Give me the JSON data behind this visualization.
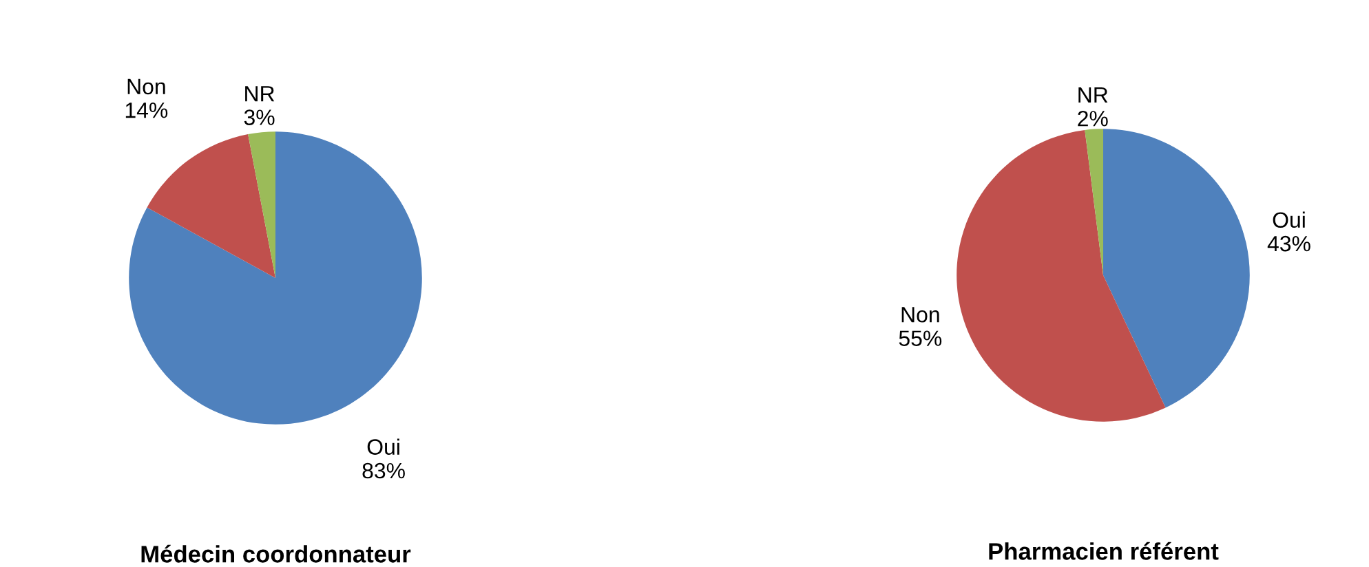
{
  "chart_data": [
    {
      "type": "pie",
      "title": "Médecin coordonnateur",
      "categories": [
        "Oui",
        "Non",
        "NR"
      ],
      "values": [
        83,
        14,
        3
      ],
      "value_labels": [
        "83%",
        "14%",
        "3%"
      ],
      "colors": [
        "#4f81bd",
        "#c0504d",
        "#9bbb59"
      ],
      "legend": false
    },
    {
      "type": "pie",
      "title": "Pharmacien référent",
      "categories": [
        "Oui",
        "Non",
        "NR"
      ],
      "values": [
        43,
        55,
        2
      ],
      "value_labels": [
        "43%",
        "55%",
        "2%"
      ],
      "colors": [
        "#4f81bd",
        "#c0504d",
        "#9bbb59"
      ],
      "legend": false
    }
  ]
}
